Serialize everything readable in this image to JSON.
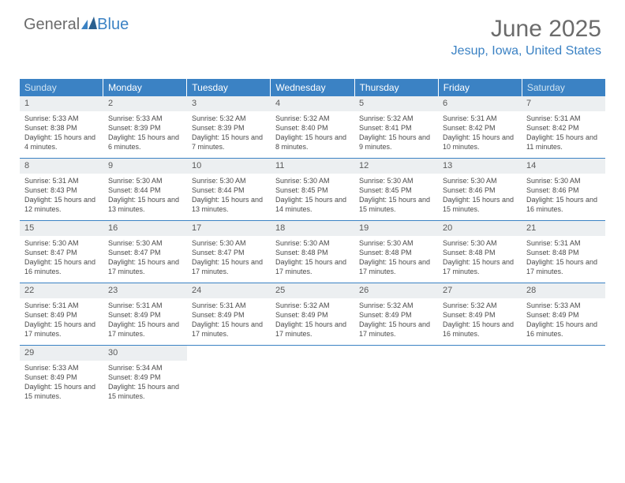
{
  "logo": {
    "text_gray": "General",
    "text_blue": "Blue"
  },
  "header": {
    "month": "June 2025",
    "location": "Jesup, Iowa, United States"
  },
  "colors": {
    "header_bg": "#3b82c4",
    "header_text": "#ffffff",
    "weekend_text": "#d0e4f2",
    "daynum_bg": "#eceff1",
    "daynum_text": "#5a5a5a",
    "body_text": "#4a4a4a",
    "border": "#3b82c4",
    "logo_gray": "#6b6b6b",
    "logo_blue": "#3b82c4"
  },
  "weekdays": [
    "Sunday",
    "Monday",
    "Tuesday",
    "Wednesday",
    "Thursday",
    "Friday",
    "Saturday"
  ],
  "weeks": [
    [
      {
        "n": "1",
        "sunrise": "5:33 AM",
        "sunset": "8:38 PM",
        "daylight": "15 hours and 4 minutes."
      },
      {
        "n": "2",
        "sunrise": "5:33 AM",
        "sunset": "8:39 PM",
        "daylight": "15 hours and 6 minutes."
      },
      {
        "n": "3",
        "sunrise": "5:32 AM",
        "sunset": "8:39 PM",
        "daylight": "15 hours and 7 minutes."
      },
      {
        "n": "4",
        "sunrise": "5:32 AM",
        "sunset": "8:40 PM",
        "daylight": "15 hours and 8 minutes."
      },
      {
        "n": "5",
        "sunrise": "5:32 AM",
        "sunset": "8:41 PM",
        "daylight": "15 hours and 9 minutes."
      },
      {
        "n": "6",
        "sunrise": "5:31 AM",
        "sunset": "8:42 PM",
        "daylight": "15 hours and 10 minutes."
      },
      {
        "n": "7",
        "sunrise": "5:31 AM",
        "sunset": "8:42 PM",
        "daylight": "15 hours and 11 minutes."
      }
    ],
    [
      {
        "n": "8",
        "sunrise": "5:31 AM",
        "sunset": "8:43 PM",
        "daylight": "15 hours and 12 minutes."
      },
      {
        "n": "9",
        "sunrise": "5:30 AM",
        "sunset": "8:44 PM",
        "daylight": "15 hours and 13 minutes."
      },
      {
        "n": "10",
        "sunrise": "5:30 AM",
        "sunset": "8:44 PM",
        "daylight": "15 hours and 13 minutes."
      },
      {
        "n": "11",
        "sunrise": "5:30 AM",
        "sunset": "8:45 PM",
        "daylight": "15 hours and 14 minutes."
      },
      {
        "n": "12",
        "sunrise": "5:30 AM",
        "sunset": "8:45 PM",
        "daylight": "15 hours and 15 minutes."
      },
      {
        "n": "13",
        "sunrise": "5:30 AM",
        "sunset": "8:46 PM",
        "daylight": "15 hours and 15 minutes."
      },
      {
        "n": "14",
        "sunrise": "5:30 AM",
        "sunset": "8:46 PM",
        "daylight": "15 hours and 16 minutes."
      }
    ],
    [
      {
        "n": "15",
        "sunrise": "5:30 AM",
        "sunset": "8:47 PM",
        "daylight": "15 hours and 16 minutes."
      },
      {
        "n": "16",
        "sunrise": "5:30 AM",
        "sunset": "8:47 PM",
        "daylight": "15 hours and 17 minutes."
      },
      {
        "n": "17",
        "sunrise": "5:30 AM",
        "sunset": "8:47 PM",
        "daylight": "15 hours and 17 minutes."
      },
      {
        "n": "18",
        "sunrise": "5:30 AM",
        "sunset": "8:48 PM",
        "daylight": "15 hours and 17 minutes."
      },
      {
        "n": "19",
        "sunrise": "5:30 AM",
        "sunset": "8:48 PM",
        "daylight": "15 hours and 17 minutes."
      },
      {
        "n": "20",
        "sunrise": "5:30 AM",
        "sunset": "8:48 PM",
        "daylight": "15 hours and 17 minutes."
      },
      {
        "n": "21",
        "sunrise": "5:31 AM",
        "sunset": "8:48 PM",
        "daylight": "15 hours and 17 minutes."
      }
    ],
    [
      {
        "n": "22",
        "sunrise": "5:31 AM",
        "sunset": "8:49 PM",
        "daylight": "15 hours and 17 minutes."
      },
      {
        "n": "23",
        "sunrise": "5:31 AM",
        "sunset": "8:49 PM",
        "daylight": "15 hours and 17 minutes."
      },
      {
        "n": "24",
        "sunrise": "5:31 AM",
        "sunset": "8:49 PM",
        "daylight": "15 hours and 17 minutes."
      },
      {
        "n": "25",
        "sunrise": "5:32 AM",
        "sunset": "8:49 PM",
        "daylight": "15 hours and 17 minutes."
      },
      {
        "n": "26",
        "sunrise": "5:32 AM",
        "sunset": "8:49 PM",
        "daylight": "15 hours and 17 minutes."
      },
      {
        "n": "27",
        "sunrise": "5:32 AM",
        "sunset": "8:49 PM",
        "daylight": "15 hours and 16 minutes."
      },
      {
        "n": "28",
        "sunrise": "5:33 AM",
        "sunset": "8:49 PM",
        "daylight": "15 hours and 16 minutes."
      }
    ],
    [
      {
        "n": "29",
        "sunrise": "5:33 AM",
        "sunset": "8:49 PM",
        "daylight": "15 hours and 15 minutes."
      },
      {
        "n": "30",
        "sunrise": "5:34 AM",
        "sunset": "8:49 PM",
        "daylight": "15 hours and 15 minutes."
      },
      null,
      null,
      null,
      null,
      null
    ]
  ],
  "labels": {
    "sunrise": "Sunrise:",
    "sunset": "Sunset:",
    "daylight": "Daylight:"
  }
}
